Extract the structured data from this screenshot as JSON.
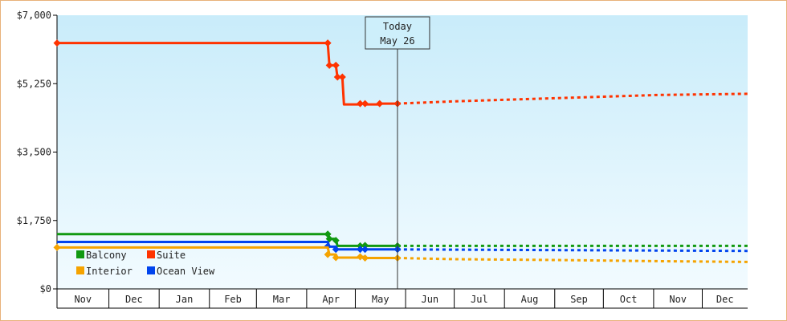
{
  "chart_data": {
    "type": "line",
    "today_marker": {
      "line1": "Today",
      "line2": "May 26",
      "date": "2024-05-26"
    },
    "y_ticks": [
      {
        "value": 0,
        "label": "$0"
      },
      {
        "value": 1750,
        "label": "$1,750"
      },
      {
        "value": 3500,
        "label": "$3,500"
      },
      {
        "value": 5250,
        "label": "$5,250"
      },
      {
        "value": 7000,
        "label": "$7,000"
      }
    ],
    "ylim": [
      0,
      7000
    ],
    "x_range": [
      "2023-10-29",
      "2024-12-28"
    ],
    "months": [
      {
        "label": "Nov",
        "start": "2023-10-29",
        "end": "2023-11-30"
      },
      {
        "label": "Dec",
        "start": "2023-11-30",
        "end": "2023-12-31"
      },
      {
        "label": "Jan",
        "start": "2023-12-31",
        "end": "2024-01-31"
      },
      {
        "label": "Feb",
        "start": "2024-01-31",
        "end": "2024-02-29"
      },
      {
        "label": "Mar",
        "start": "2024-02-29",
        "end": "2024-03-31"
      },
      {
        "label": "Apr",
        "start": "2024-03-31",
        "end": "2024-04-30"
      },
      {
        "label": "May",
        "start": "2024-04-30",
        "end": "2024-05-31"
      },
      {
        "label": "Jun",
        "start": "2024-05-31",
        "end": "2024-06-30"
      },
      {
        "label": "Jul",
        "start": "2024-06-30",
        "end": "2024-07-31"
      },
      {
        "label": "Aug",
        "start": "2024-07-31",
        "end": "2024-08-31"
      },
      {
        "label": "Sep",
        "start": "2024-08-31",
        "end": "2024-09-30"
      },
      {
        "label": "Oct",
        "start": "2024-09-30",
        "end": "2024-10-31"
      },
      {
        "label": "Nov",
        "start": "2024-10-31",
        "end": "2024-11-30"
      },
      {
        "label": "Dec",
        "start": "2024-11-30",
        "end": "2024-12-28"
      }
    ],
    "legend": [
      {
        "name": "Balcony",
        "color": "#119911"
      },
      {
        "name": "Suite",
        "color": "#ff3300"
      },
      {
        "name": "Interior",
        "color": "#f5a300"
      },
      {
        "name": "Ocean View",
        "color": "#0044ee"
      }
    ],
    "series": [
      {
        "name": "Suite",
        "color": "#ff3300",
        "actual": [
          [
            "2023-10-29",
            6290
          ],
          [
            "2024-04-13",
            6290
          ],
          [
            "2024-04-14",
            5720
          ],
          [
            "2024-04-18",
            5720
          ],
          [
            "2024-04-19",
            5420
          ],
          [
            "2024-04-22",
            5420
          ],
          [
            "2024-04-23",
            4720
          ],
          [
            "2024-05-02",
            4720
          ],
          [
            "2024-05-03",
            4740
          ],
          [
            "2024-05-06",
            4740
          ],
          [
            "2024-05-07",
            4720
          ],
          [
            "2024-05-14",
            4720
          ],
          [
            "2024-05-15",
            4740
          ],
          [
            "2024-05-26",
            4740
          ]
        ],
        "markers": [
          [
            "2023-10-29",
            6290
          ],
          [
            "2024-04-13",
            6290
          ],
          [
            "2024-04-14",
            5720
          ],
          [
            "2024-04-18",
            5720
          ],
          [
            "2024-04-19",
            5420
          ],
          [
            "2024-04-22",
            5420
          ],
          [
            "2024-05-03",
            4740
          ],
          [
            "2024-05-06",
            4740
          ],
          [
            "2024-05-15",
            4740
          ],
          [
            "2024-05-26",
            4740
          ]
        ],
        "forecast": [
          [
            "2024-05-26",
            4740
          ],
          [
            "2024-07-01",
            4800
          ],
          [
            "2024-09-01",
            4880
          ],
          [
            "2024-11-01",
            4960
          ],
          [
            "2024-12-28",
            4990
          ]
        ]
      },
      {
        "name": "Balcony",
        "color": "#119911",
        "actual": [
          [
            "2023-10-29",
            1400
          ],
          [
            "2024-04-13",
            1400
          ],
          [
            "2024-04-14",
            1280
          ],
          [
            "2024-04-18",
            1280
          ],
          [
            "2024-04-19",
            1100
          ],
          [
            "2024-05-26",
            1100
          ]
        ],
        "markers": [
          [
            "2024-04-13",
            1400
          ],
          [
            "2024-04-14",
            1280
          ],
          [
            "2024-04-18",
            1240
          ],
          [
            "2024-05-03",
            1100
          ],
          [
            "2024-05-06",
            1110
          ],
          [
            "2024-05-26",
            1100
          ]
        ],
        "forecast": [
          [
            "2024-05-26",
            1100
          ],
          [
            "2024-12-28",
            1100
          ]
        ]
      },
      {
        "name": "Ocean View",
        "color": "#0044ee",
        "actual": [
          [
            "2023-10-29",
            1200
          ],
          [
            "2024-04-13",
            1200
          ],
          [
            "2024-04-14",
            1080
          ],
          [
            "2024-04-18",
            1080
          ],
          [
            "2024-04-19",
            1010
          ],
          [
            "2024-05-26",
            1010
          ]
        ],
        "markers": [
          [
            "2024-04-13",
            1090
          ],
          [
            "2024-04-18",
            1010
          ],
          [
            "2024-05-03",
            1010
          ],
          [
            "2024-05-06",
            1010
          ],
          [
            "2024-05-26",
            1010
          ]
        ],
        "forecast": [
          [
            "2024-05-26",
            1010
          ],
          [
            "2024-12-28",
            970
          ]
        ]
      },
      {
        "name": "Interior",
        "color": "#f5a300",
        "actual": [
          [
            "2023-10-29",
            1060
          ],
          [
            "2024-04-13",
            1060
          ],
          [
            "2024-04-14",
            880
          ],
          [
            "2024-04-18",
            880
          ],
          [
            "2024-04-19",
            800
          ],
          [
            "2024-05-02",
            800
          ],
          [
            "2024-05-03",
            820
          ],
          [
            "2024-05-06",
            820
          ],
          [
            "2024-05-07",
            790
          ],
          [
            "2024-05-26",
            790
          ]
        ],
        "markers": [
          [
            "2023-10-29",
            1060
          ],
          [
            "2024-04-13",
            880
          ],
          [
            "2024-04-18",
            800
          ],
          [
            "2024-05-03",
            820
          ],
          [
            "2024-05-06",
            790
          ],
          [
            "2024-05-26",
            790
          ]
        ],
        "forecast": [
          [
            "2024-05-26",
            790
          ],
          [
            "2024-07-01",
            760
          ],
          [
            "2024-09-01",
            740
          ],
          [
            "2024-11-01",
            710
          ],
          [
            "2024-12-28",
            690
          ]
        ]
      }
    ]
  }
}
